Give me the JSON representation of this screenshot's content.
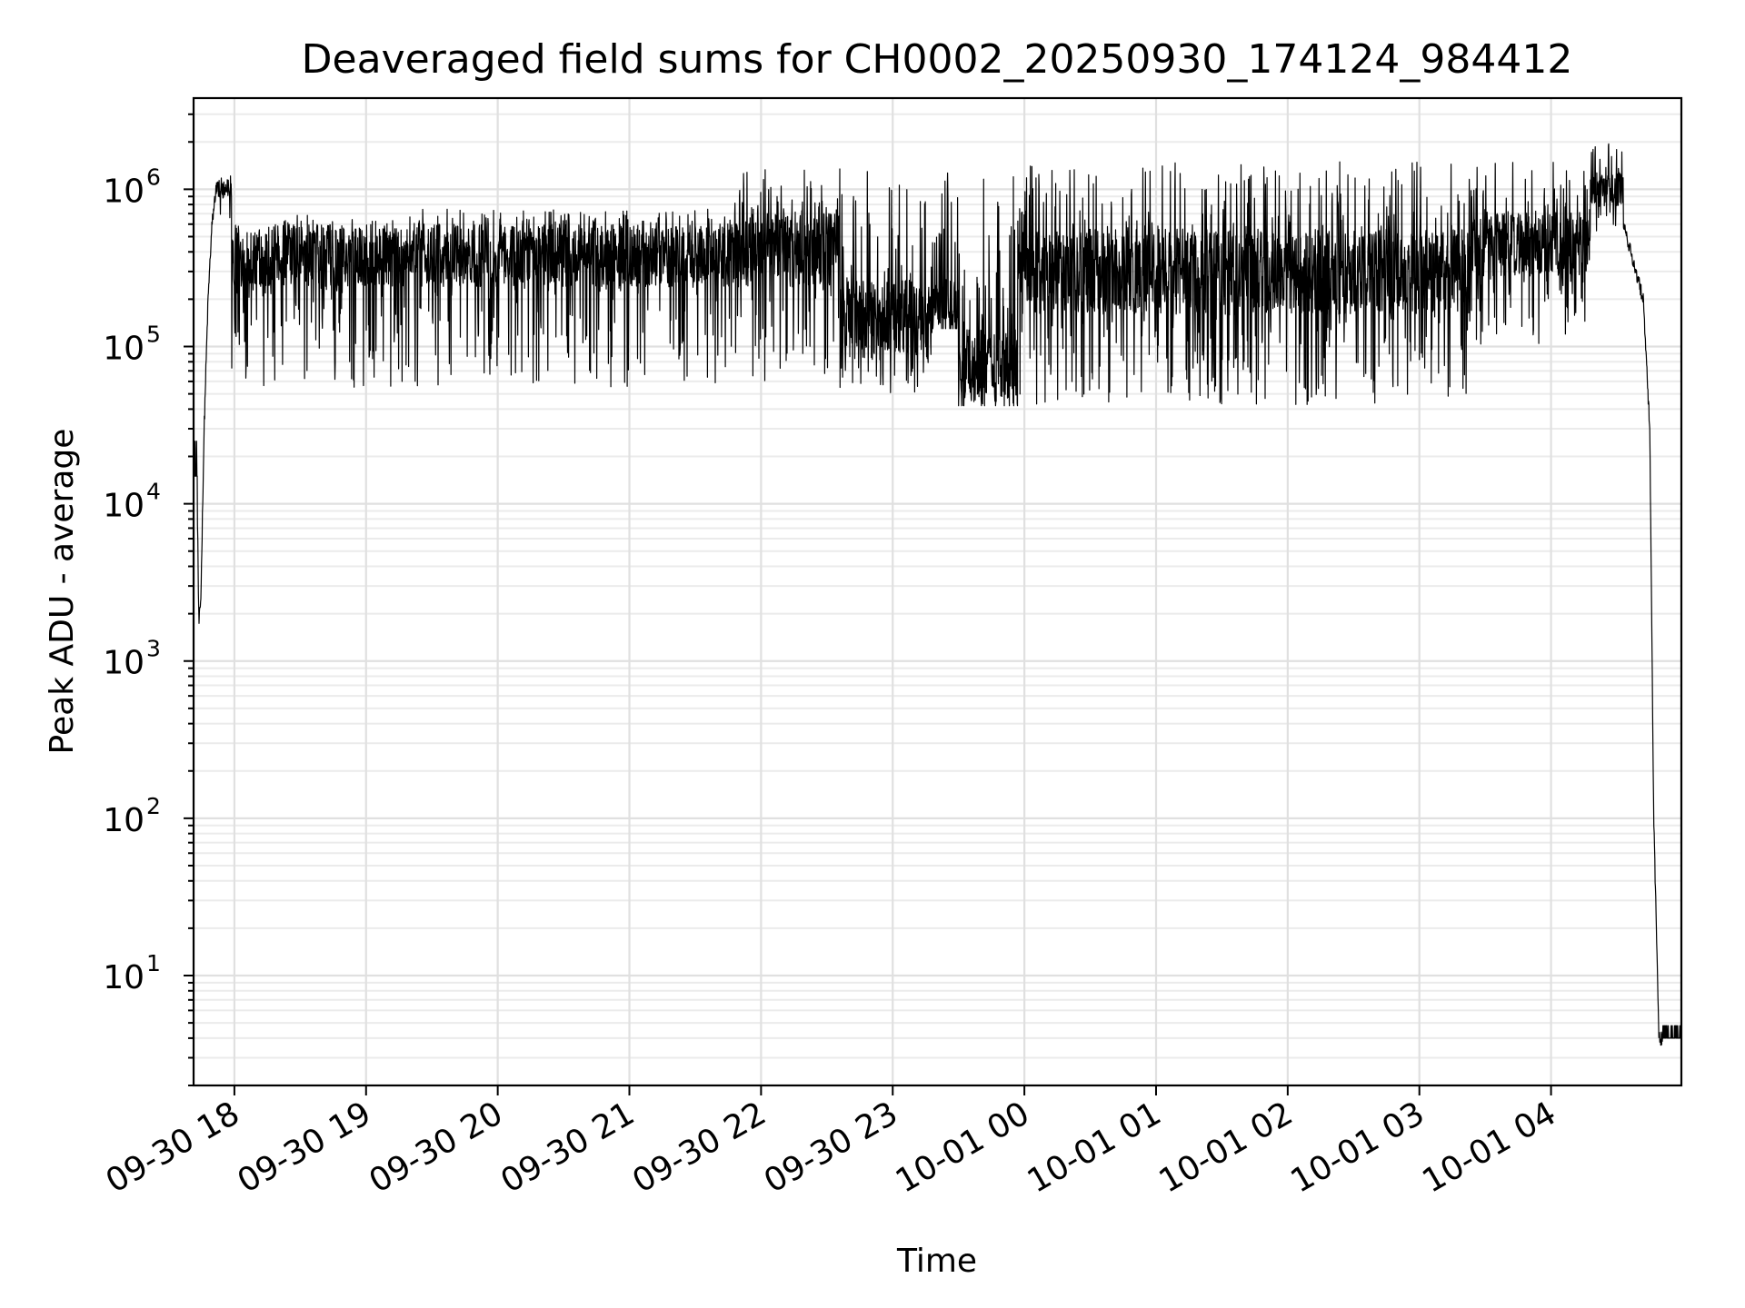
{
  "chart_data": {
    "type": "line",
    "title": "Deaveraged field sums for CH0002_20250930_174124_984412",
    "xlabel": "Time",
    "ylabel": "Peak ADU - average",
    "yscale": "log",
    "ylim": [
      2,
      3800000
    ],
    "xlim": [
      17.69,
      28.99
    ],
    "grid": true,
    "line_color": "#000000",
    "x_ticks": [
      {
        "value": 18,
        "label": "09-30 18"
      },
      {
        "value": 19,
        "label": "09-30 19"
      },
      {
        "value": 20,
        "label": "09-30 20"
      },
      {
        "value": 21,
        "label": "09-30 21"
      },
      {
        "value": 22,
        "label": "09-30 22"
      },
      {
        "value": 23,
        "label": "09-30 23"
      },
      {
        "value": 24,
        "label": "10-01 00"
      },
      {
        "value": 25,
        "label": "10-01 01"
      },
      {
        "value": 26,
        "label": "10-01 02"
      },
      {
        "value": 27,
        "label": "10-01 03"
      },
      {
        "value": 28,
        "label": "10-01 04"
      }
    ],
    "y_ticks": [
      {
        "value": 10,
        "base": "10",
        "exp": "1"
      },
      {
        "value": 100,
        "base": "10",
        "exp": "2"
      },
      {
        "value": 1000,
        "base": "10",
        "exp": "3"
      },
      {
        "value": 10000,
        "base": "10",
        "exp": "4"
      },
      {
        "value": 100000,
        "base": "10",
        "exp": "5"
      },
      {
        "value": 1000000,
        "base": "10",
        "exp": "6"
      }
    ],
    "series": [
      {
        "name": "Peak ADU - average",
        "x_unit": "hours since 09-30 00:00",
        "segments": [
          {
            "x_start": 17.69,
            "x_end": 17.72,
            "kind": "flat",
            "value": 15000,
            "spikes_high": 25000,
            "spikes_low": 12000
          },
          {
            "x_start": 17.72,
            "x_end": 17.75,
            "kind": "dip",
            "points": [
              [
                17.72,
                8000
              ],
              [
                17.73,
                1700
              ],
              [
                17.745,
                2500
              ],
              [
                17.75,
                4000
              ]
            ]
          },
          {
            "x_start": 17.75,
            "x_end": 17.86,
            "kind": "rise",
            "points": [
              [
                17.75,
                4000
              ],
              [
                17.77,
                30000
              ],
              [
                17.8,
                200000
              ],
              [
                17.83,
                600000
              ],
              [
                17.86,
                1000000
              ]
            ]
          },
          {
            "x_start": 17.86,
            "x_end": 17.98,
            "kind": "band",
            "mid": 1000000,
            "hi": 1250000,
            "lo": 600000
          },
          {
            "x_start": 17.98,
            "x_end": 21.8,
            "kind": "band",
            "mid": 380000,
            "hi": 750000,
            "lo": 55000
          },
          {
            "x_start": 21.8,
            "x_end": 22.6,
            "kind": "band",
            "mid": 420000,
            "hi": 1400000,
            "lo": 55000
          },
          {
            "x_start": 22.6,
            "x_end": 23.3,
            "kind": "band",
            "mid": 150000,
            "hi": 1300000,
            "lo": 50000
          },
          {
            "x_start": 23.3,
            "x_end": 23.5,
            "kind": "band",
            "mid": 180000,
            "hi": 1300000,
            "lo": 130000
          },
          {
            "x_start": 23.5,
            "x_end": 23.95,
            "kind": "band",
            "mid": 70000,
            "hi": 1350000,
            "lo": 42000
          },
          {
            "x_start": 23.95,
            "x_end": 27.4,
            "kind": "band",
            "mid": 300000,
            "hi": 1500000,
            "lo": 42000
          },
          {
            "x_start": 27.4,
            "x_end": 28.3,
            "kind": "band",
            "mid": 450000,
            "hi": 1500000,
            "lo": 100000
          },
          {
            "x_start": 28.3,
            "x_end": 28.55,
            "kind": "band",
            "mid": 1000000,
            "hi": 2000000,
            "lo": 500000
          },
          {
            "x_start": 28.55,
            "x_end": 28.85,
            "kind": "fall",
            "points": [
              [
                28.55,
                600000
              ],
              [
                28.7,
                200000
              ],
              [
                28.75,
                30000
              ],
              [
                28.78,
                100
              ],
              [
                28.82,
                4
              ],
              [
                28.85,
                4
              ]
            ]
          },
          {
            "x_start": 28.85,
            "x_end": 28.99,
            "kind": "flat",
            "value": 4,
            "spikes_high": 4.8,
            "spikes_low": 4
          }
        ]
      }
    ]
  }
}
